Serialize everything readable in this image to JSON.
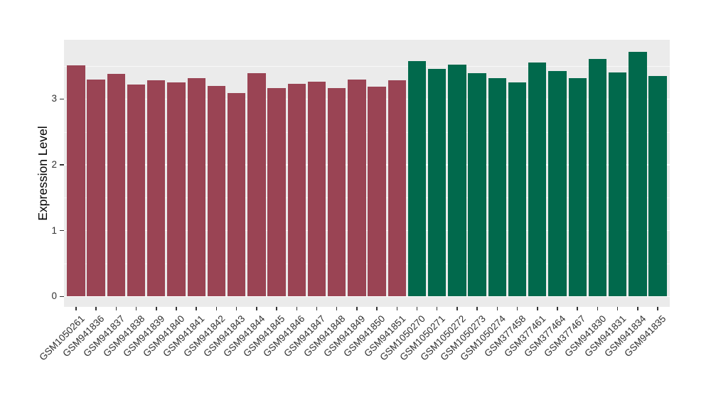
{
  "chart_data": {
    "type": "bar",
    "title": "",
    "xlabel": "",
    "ylabel": "Expression Level",
    "ylim": [
      0,
      3.9
    ],
    "yticks": [
      0,
      1,
      2,
      3
    ],
    "minor_gridlines": [
      0.5,
      1.5,
      2.5,
      3.5
    ],
    "grid": true,
    "legend_position": "none",
    "panel_background": "#EBEBEB",
    "grid_color": "#FFFFFF",
    "axis_text_color": "#303030",
    "categories": [
      "GSM1050261",
      "GSM941836",
      "GSM941837",
      "GSM941838",
      "GSM941839",
      "GSM941840",
      "GSM941841",
      "GSM941842",
      "GSM941843",
      "GSM941844",
      "GSM941845",
      "GSM941846",
      "GSM941847",
      "GSM941848",
      "GSM941849",
      "GSM941850",
      "GSM941851",
      "GSM1050270",
      "GSM1050271",
      "GSM1050272",
      "GSM1050273",
      "GSM1050274",
      "GSM377458",
      "GSM377461",
      "GSM377464",
      "GSM377467",
      "GSM941830",
      "GSM941831",
      "GSM941834",
      "GSM941835"
    ],
    "values": [
      3.51,
      3.29,
      3.38,
      3.22,
      3.28,
      3.25,
      3.32,
      3.2,
      3.09,
      3.39,
      3.16,
      3.23,
      3.26,
      3.16,
      3.29,
      3.19,
      3.28,
      3.57,
      3.46,
      3.52,
      3.39,
      3.32,
      3.25,
      3.55,
      3.42,
      3.32,
      3.61,
      3.4,
      3.71,
      3.35
    ],
    "groups": [
      "group1",
      "group1",
      "group1",
      "group1",
      "group1",
      "group1",
      "group1",
      "group1",
      "group1",
      "group1",
      "group1",
      "group1",
      "group1",
      "group1",
      "group1",
      "group1",
      "group1",
      "group2",
      "group2",
      "group2",
      "group2",
      "group2",
      "group2",
      "group2",
      "group2",
      "group2",
      "group2",
      "group2",
      "group2",
      "group2"
    ],
    "group_colors": {
      "group1": "#9A4454",
      "group2": "#01694C"
    }
  }
}
